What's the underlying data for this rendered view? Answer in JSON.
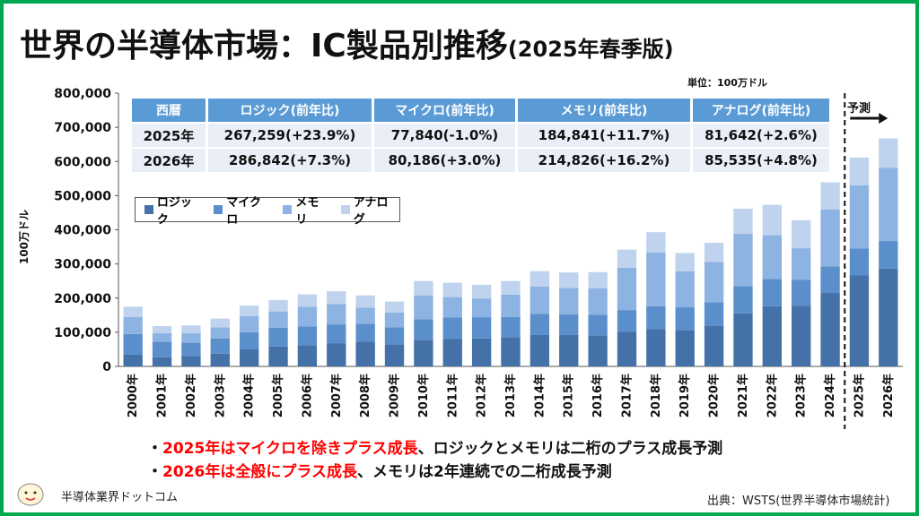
{
  "title": "世界の半導体市場：IC製品別推移",
  "title_sub": "(2025年春季版)",
  "unit": "単位：100万ドル",
  "forecast_label": "予測",
  "table": {
    "headers": [
      "西暦",
      "ロジック(前年比)",
      "マイクロ(前年比)",
      "メモリ(前年比)",
      "アナログ(前年比)"
    ],
    "rows": [
      [
        "2025年",
        "267,259(+23.9%)",
        "77,840(-1.0%)",
        "184,841(+11.7%)",
        "81,642(+2.6%)"
      ],
      [
        "2026年",
        "286,842(+7.3%)",
        "80,186(+3.0%)",
        "214,826(+16.2%)",
        "85,535(+4.8%)"
      ]
    ]
  },
  "notes": [
    {
      "prefix": "・",
      "highlight": "2025年はマイクロを除きプラス成長",
      "rest": "、ロジックとメモリは二桁のプラス成長予測"
    },
    {
      "prefix": "・",
      "highlight": "2026年は全般にプラス成長",
      "rest": "、メモリは2年連続での二桁成長予測"
    }
  ],
  "brand": "半導体業界ドットコム",
  "source": "出典：WSTS(世界半導体市場統計)",
  "colors": {
    "logic": "#4472a8",
    "micro": "#5b8fcc",
    "memory": "#8db3e2",
    "analog": "#bfd3ee",
    "accent": "#00a94f",
    "highlight": "#ff0000"
  },
  "chart_data": {
    "type": "bar",
    "stacked": true,
    "ylabel": "100万ドル",
    "ylim": [
      0,
      800000
    ],
    "yticks": [
      "0",
      "100,000",
      "200,000",
      "300,000",
      "400,000",
      "500,000",
      "600,000",
      "700,000",
      "800,000"
    ],
    "categories": [
      "2000年",
      "2001年",
      "2002年",
      "2003年",
      "2004年",
      "2005年",
      "2006年",
      "2007年",
      "2008年",
      "2009年",
      "2010年",
      "2011年",
      "2012年",
      "2013年",
      "2014年",
      "2015年",
      "2016年",
      "2017年",
      "2018年",
      "2019年",
      "2020年",
      "2021年",
      "2022年",
      "2023年",
      "2024年",
      "2025年",
      "2026年"
    ],
    "series": [
      {
        "name": "ロジック",
        "values": [
          35000,
          27000,
          30000,
          37000,
          50000,
          58000,
          62000,
          68000,
          73000,
          64000,
          78000,
          80000,
          82000,
          85000,
          92000,
          92000,
          91000,
          102000,
          109000,
          106000,
          118000,
          155000,
          176000,
          178000,
          215000,
          267259,
          286842
        ]
      },
      {
        "name": "マイクロ",
        "values": [
          60000,
          45000,
          40000,
          45000,
          50000,
          55000,
          55000,
          55000,
          52000,
          50000,
          60000,
          63000,
          62000,
          60000,
          62000,
          60000,
          60000,
          63000,
          67000,
          67000,
          70000,
          80000,
          80000,
          76000,
          78000,
          77840,
          80186
        ]
      },
      {
        "name": "メモリ",
        "values": [
          50000,
          25000,
          27000,
          32000,
          47000,
          48000,
          58000,
          60000,
          47000,
          44000,
          70000,
          60000,
          55000,
          65000,
          80000,
          78000,
          78000,
          124000,
          158000,
          105000,
          118000,
          153000,
          128000,
          92000,
          166000,
          184841,
          214826
        ]
      },
      {
        "name": "アナログ",
        "values": [
          30000,
          21000,
          23000,
          26000,
          31000,
          33000,
          36000,
          37000,
          36000,
          32000,
          42000,
          42000,
          40000,
          40000,
          45000,
          45000,
          47000,
          53000,
          59000,
          54000,
          56000,
          74000,
          89000,
          82000,
          80000,
          81642,
          85535
        ]
      }
    ],
    "forecast_from": "2025年",
    "legend": "upper-left"
  }
}
